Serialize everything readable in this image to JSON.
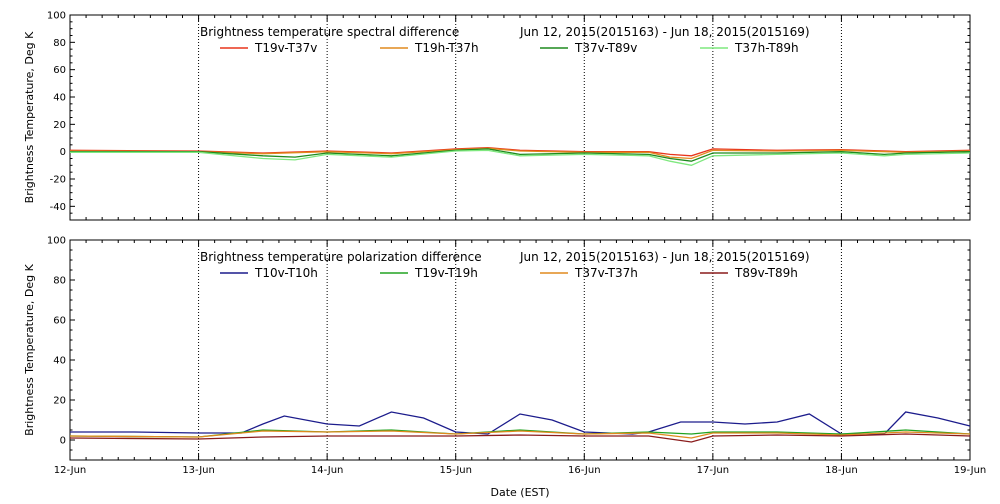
{
  "chart_data": [
    {
      "type": "line",
      "title": "Brightness temperature spectral difference",
      "date_range": "Jun 12, 2015(2015163) - Jun 18, 2015(2015169)",
      "xlabel": "",
      "ylabel": "Brightness Temperature, Deg K",
      "ylim": [
        -50,
        100
      ],
      "yticks": [
        -40,
        -20,
        0,
        20,
        40,
        60,
        80,
        100
      ],
      "xlim": [
        "2015-06-12",
        "2015-06-19"
      ],
      "xticks": [
        "12-Jun",
        "13-Jun",
        "14-Jun",
        "15-Jun",
        "16-Jun",
        "17-Jun",
        "18-Jun",
        "19-Jun"
      ],
      "show_x_tick_labels": false,
      "grid": "vertical dotted at day boundaries",
      "legend_position": "top",
      "series": [
        {
          "name": "T19v-T37v",
          "color": "#e8351c",
          "x": [
            "2015-06-12 00:00",
            "2015-06-13 00:00",
            "2015-06-13 12:00",
            "2015-06-14 00:00",
            "2015-06-14 12:00",
            "2015-06-15 00:00",
            "2015-06-15 06:00",
            "2015-06-15 12:00",
            "2015-06-16 00:00",
            "2015-06-16 12:00",
            "2015-06-16 16:00",
            "2015-06-16 20:00",
            "2015-06-17 00:00",
            "2015-06-17 12:00",
            "2015-06-18 00:00",
            "2015-06-18 12:00",
            "2015-06-19 00:00"
          ],
          "y": [
            1,
            0.5,
            -1,
            0.5,
            -1,
            2,
            3,
            1,
            0,
            0,
            -2,
            -3,
            2,
            1,
            1.5,
            0,
            1
          ]
        },
        {
          "name": "T19h-T37h",
          "color": "#e08a1e",
          "x": [
            "2015-06-12 00:00",
            "2015-06-13 00:00",
            "2015-06-13 12:00",
            "2015-06-14 00:00",
            "2015-06-14 12:00",
            "2015-06-15 00:00",
            "2015-06-15 06:00",
            "2015-06-15 12:00",
            "2015-06-16 00:00",
            "2015-06-16 12:00",
            "2015-06-16 16:00",
            "2015-06-16 20:00",
            "2015-06-17 00:00",
            "2015-06-17 12:00",
            "2015-06-18 00:00",
            "2015-06-18 12:00",
            "2015-06-19 00:00"
          ],
          "y": [
            0.5,
            0,
            -1.5,
            0,
            -1.5,
            1.5,
            2.5,
            0.5,
            -0.5,
            -0.5,
            -4,
            -5,
            1,
            0.5,
            1,
            -0.5,
            0.5
          ]
        },
        {
          "name": "T37v-T89v",
          "color": "#1e8a1e",
          "x": [
            "2015-06-12 00:00",
            "2015-06-13 00:00",
            "2015-06-13 12:00",
            "2015-06-13 18:00",
            "2015-06-14 00:00",
            "2015-06-14 12:00",
            "2015-06-15 00:00",
            "2015-06-15 06:00",
            "2015-06-15 12:00",
            "2015-06-16 00:00",
            "2015-06-16 12:00",
            "2015-06-16 16:00",
            "2015-06-16 20:00",
            "2015-06-17 00:00",
            "2015-06-17 12:00",
            "2015-06-18 00:00",
            "2015-06-18 08:00",
            "2015-06-18 12:00",
            "2015-06-19 00:00"
          ],
          "y": [
            0,
            0,
            -3,
            -4,
            -1,
            -3,
            1,
            2,
            -2,
            -1,
            -2,
            -5,
            -7,
            -1,
            -1,
            0,
            -2,
            -1,
            0
          ]
        },
        {
          "name": "T37h-T89h",
          "color": "#7fe87f",
          "x": [
            "2015-06-12 00:00",
            "2015-06-13 00:00",
            "2015-06-13 12:00",
            "2015-06-13 18:00",
            "2015-06-14 00:00",
            "2015-06-14 12:00",
            "2015-06-15 00:00",
            "2015-06-15 06:00",
            "2015-06-15 12:00",
            "2015-06-16 00:00",
            "2015-06-16 12:00",
            "2015-06-16 16:00",
            "2015-06-16 20:00",
            "2015-06-17 00:00",
            "2015-06-17 12:00",
            "2015-06-18 00:00",
            "2015-06-18 08:00",
            "2015-06-18 12:00",
            "2015-06-19 00:00"
          ],
          "y": [
            -0.5,
            -0.5,
            -5,
            -6,
            -2,
            -4,
            0.5,
            1,
            -3,
            -2,
            -3,
            -7,
            -10,
            -3,
            -2,
            -1,
            -3,
            -2,
            -1
          ]
        }
      ]
    },
    {
      "type": "line",
      "title": "Brightness temperature polarization difference",
      "date_range": "Jun 12, 2015(2015163) - Jun 18, 2015(2015169)",
      "xlabel": "Date (EST)",
      "ylabel": "Brightness Temperature, Deg K",
      "ylim": [
        -10,
        100
      ],
      "yticks": [
        0,
        20,
        40,
        60,
        80,
        100
      ],
      "xlim": [
        "2015-06-12",
        "2015-06-19"
      ],
      "xticks": [
        "12-Jun",
        "13-Jun",
        "14-Jun",
        "15-Jun",
        "16-Jun",
        "17-Jun",
        "18-Jun",
        "19-Jun"
      ],
      "show_x_tick_labels": true,
      "grid": "vertical dotted at day boundaries",
      "legend_position": "top",
      "series": [
        {
          "name": "T10v-T10h",
          "color": "#1c1c8c",
          "x": [
            "2015-06-12 00:00",
            "2015-06-12 12:00",
            "2015-06-13 00:00",
            "2015-06-13 08:00",
            "2015-06-13 12:00",
            "2015-06-13 16:00",
            "2015-06-14 00:00",
            "2015-06-14 06:00",
            "2015-06-14 12:00",
            "2015-06-14 18:00",
            "2015-06-15 00:00",
            "2015-06-15 06:00",
            "2015-06-15 12:00",
            "2015-06-15 18:00",
            "2015-06-16 00:00",
            "2015-06-16 09:00",
            "2015-06-16 12:00",
            "2015-06-16 18:00",
            "2015-06-17 00:00",
            "2015-06-17 06:00",
            "2015-06-17 12:00",
            "2015-06-17 18:00",
            "2015-06-18 00:00",
            "2015-06-18 08:00",
            "2015-06-18 12:00",
            "2015-06-18 18:00",
            "2015-06-19 00:00"
          ],
          "y": [
            4,
            4,
            3.5,
            3.5,
            8,
            12,
            8,
            7,
            14,
            11,
            4,
            3,
            13,
            10,
            4,
            3,
            4,
            9,
            9,
            8,
            9,
            13,
            3,
            3,
            14,
            11,
            7
          ]
        },
        {
          "name": "T19v-T19h",
          "color": "#22a322",
          "x": [
            "2015-06-12 00:00",
            "2015-06-13 00:00",
            "2015-06-13 12:00",
            "2015-06-14 00:00",
            "2015-06-14 12:00",
            "2015-06-15 00:00",
            "2015-06-15 12:00",
            "2015-06-16 00:00",
            "2015-06-16 12:00",
            "2015-06-16 20:00",
            "2015-06-17 00:00",
            "2015-06-17 12:00",
            "2015-06-18 00:00",
            "2015-06-18 12:00",
            "2015-06-19 00:00"
          ],
          "y": [
            2,
            1.5,
            5,
            4,
            5,
            3,
            5,
            3,
            4,
            3,
            4,
            4,
            3,
            5,
            3
          ]
        },
        {
          "name": "T37v-T37h",
          "color": "#e08a1e",
          "x": [
            "2015-06-12 00:00",
            "2015-06-13 00:00",
            "2015-06-13 12:00",
            "2015-06-14 00:00",
            "2015-06-14 12:00",
            "2015-06-15 00:00",
            "2015-06-15 12:00",
            "2015-06-16 00:00",
            "2015-06-16 12:00",
            "2015-06-16 20:00",
            "2015-06-17 00:00",
            "2015-06-17 12:00",
            "2015-06-18 00:00",
            "2015-06-18 12:00",
            "2015-06-19 00:00"
          ],
          "y": [
            2,
            1.5,
            4.5,
            4,
            4.5,
            3,
            4.5,
            3,
            3.5,
            1,
            3.5,
            3.5,
            2.5,
            4,
            3
          ]
        },
        {
          "name": "T89v-T89h",
          "color": "#8a1c1c",
          "x": [
            "2015-06-12 00:00",
            "2015-06-13 00:00",
            "2015-06-13 12:00",
            "2015-06-14 00:00",
            "2015-06-14 12:00",
            "2015-06-15 00:00",
            "2015-06-15 12:00",
            "2015-06-16 00:00",
            "2015-06-16 12:00",
            "2015-06-16 20:00",
            "2015-06-17 00:00",
            "2015-06-17 12:00",
            "2015-06-18 00:00",
            "2015-06-18 12:00",
            "2015-06-19 00:00"
          ],
          "y": [
            1,
            0.5,
            1.5,
            2,
            2,
            2,
            2.5,
            2,
            2,
            -1,
            2,
            2.5,
            2,
            3,
            2
          ]
        }
      ]
    }
  ]
}
